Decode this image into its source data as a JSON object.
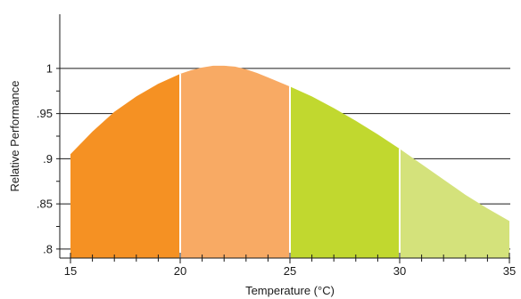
{
  "chart_data": {
    "type": "area",
    "title": "",
    "xlabel": "Temperature (°C)",
    "ylabel": "Relative Performance",
    "xlim": [
      15,
      35
    ],
    "ylim": [
      0.79,
      1.06
    ],
    "grid": true,
    "x_ticks": [
      15,
      20,
      25,
      30,
      35
    ],
    "y_ticks": [
      0.8,
      0.85,
      0.9,
      0.95,
      1
    ],
    "x_tick_labels": [
      "15",
      "20",
      "25",
      "30",
      "35"
    ],
    "y_tick_labels": [
      ".8",
      ".85",
      ".9",
      ".95",
      "1"
    ],
    "curve": {
      "x": [
        15,
        16,
        17,
        18,
        19,
        20,
        20.5,
        21,
        21.5,
        22,
        22.5,
        23,
        23.5,
        24,
        25,
        26,
        27,
        28,
        29,
        30,
        31,
        32,
        33,
        34,
        35
      ],
      "y": [
        0.905,
        0.93,
        0.952,
        0.969,
        0.983,
        0.994,
        0.998,
        1.001,
        1.003,
        1.003,
        1.002,
        0.999,
        0.995,
        0.99,
        0.98,
        0.969,
        0.956,
        0.942,
        0.927,
        0.911,
        0.894,
        0.877,
        0.86,
        0.845,
        0.831
      ]
    },
    "bands": [
      {
        "from": 15,
        "to": 20,
        "color": "#f59123"
      },
      {
        "from": 20,
        "to": 25,
        "color": "#f8aa64"
      },
      {
        "from": 25,
        "to": 30,
        "color": "#c1d82f"
      },
      {
        "from": 30,
        "to": 35,
        "color": "#d4e27b"
      }
    ]
  }
}
